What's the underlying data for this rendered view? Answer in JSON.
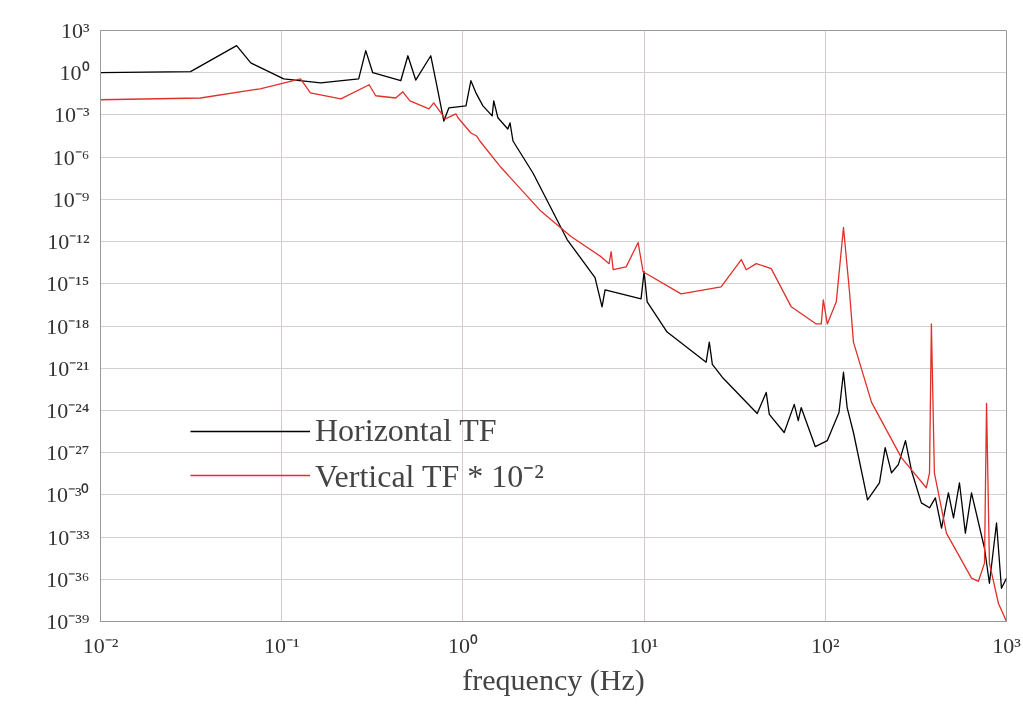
{
  "chart_data": {
    "type": "line",
    "xlabel": "frequency (Hz)",
    "log": "xy",
    "grid": true,
    "legend": "bottom left",
    "line_style": "solid",
    "xlim": [
      0.01,
      1000
    ],
    "xticks": [
      {
        "value": 0.01,
        "label": "10⁻²"
      },
      {
        "value": 0.1,
        "label": "10⁻¹"
      },
      {
        "value": 1,
        "label": "10⁰"
      },
      {
        "value": 10,
        "label": "10¹"
      },
      {
        "value": 100,
        "label": "10²"
      },
      {
        "value": 1000,
        "label": "10³"
      }
    ],
    "ylim": [
      1e-39,
      1000
    ],
    "yticks": [
      {
        "value": 1000,
        "label": "10³"
      },
      {
        "value": 1,
        "label": "10⁰"
      },
      {
        "value": 0.001,
        "label": "10⁻³"
      },
      {
        "value": 1e-06,
        "label": "10⁻⁶"
      },
      {
        "value": 1e-09,
        "label": "10⁻⁹"
      },
      {
        "value": 1e-12,
        "label": "10⁻¹²"
      },
      {
        "value": 1e-15,
        "label": "10⁻¹⁵"
      },
      {
        "value": 1e-18,
        "label": "10⁻¹⁸"
      },
      {
        "value": 1e-21,
        "label": "10⁻²¹"
      },
      {
        "value": 1e-24,
        "label": "10⁻²⁴"
      },
      {
        "value": 1e-27,
        "label": "10⁻²⁷"
      },
      {
        "value": 1e-30,
        "label": "10⁻³⁰"
      },
      {
        "value": 1e-33,
        "label": "10⁻³³"
      },
      {
        "value": 1e-36,
        "label": "10⁻³⁶"
      },
      {
        "value": 1e-39,
        "label": "10⁻³⁹"
      }
    ],
    "series": [
      {
        "name": "Horizontal TF",
        "color": "#000000",
        "x": [
          0.01,
          0.0314,
          0.0564,
          0.0675,
          0.1026,
          0.164,
          0.266,
          0.291,
          0.318,
          0.454,
          0.497,
          0.549,
          0.665,
          0.718,
          0.785,
          0.837,
          1.04,
          1.107,
          1.18,
          1.29,
          1.45,
          1.48,
          1.56,
          1.77,
          1.82,
          1.89,
          2.44,
          3.76,
          5.36,
          5.86,
          6.09,
          7.47,
          9.62,
          10.0,
          10.4,
          13.4,
          22.0,
          22.9,
          23.8,
          27.0,
          42.1,
          47.2,
          49.1,
          59.3,
          67.4,
          70.9,
          73.6,
          88.0,
          102.6,
          119,
          126,
          132,
          143,
          171,
          199,
          214,
          232,
          253,
          277,
          299,
          339,
          376,
          405,
          438,
          478,
          510,
          550,
          593,
          641,
          756,
          805,
          881,
          938,
          1000
        ],
        "values": [
          1,
          1.2,
          85,
          5,
          0.37,
          0.19,
          0.37,
          37,
          1,
          0.27,
          16,
          0.3,
          16,
          0.12,
          0.00037,
          0.0032,
          0.0044,
          0.27,
          0.037,
          0.0044,
          0.00085,
          0.01,
          0.00063,
          0.0001,
          0.00027,
          1.4e-05,
          7.2e-08,
          1.4e-12,
          2.7e-15,
          2.3e-17,
          3.7e-16,
          1.9e-16,
          8.5e-17,
          7.2e-15,
          5.2e-17,
          3.7e-19,
          2.7e-21,
          7.2e-20,
          1.9e-21,
          2.3e-22,
          6.1e-25,
          1.9e-23,
          5.2e-25,
          2.7e-26,
          2.7e-24,
          1.9e-25,
          1.6e-24,
          2.7e-27,
          7.2e-27,
          7.2e-25,
          5.2e-22,
          1.6e-24,
          2.7e-26,
          4.4e-31,
          7.2e-30,
          2.3e-27,
          3.7e-29,
          1.4e-28,
          7.2e-27,
          5.2e-29,
          2.7e-31,
          1.2e-31,
          6.1e-31,
          4.4e-33,
          1.4e-30,
          2.3e-32,
          7.2e-30,
          1.9e-33,
          1.4e-30,
          1.6e-34,
          5.2e-37,
          1e-32,
          2.3e-37,
          1.2e-36
        ]
      },
      {
        "name": "Vertical TF * 10⁻²",
        "color": "#e0302a",
        "x": [
          0.01,
          0.0356,
          0.076,
          0.127,
          0.144,
          0.212,
          0.304,
          0.33,
          0.426,
          0.466,
          0.51,
          0.65,
          0.69,
          0.8,
          0.915,
          0.94,
          1.107,
          1.19,
          1.24,
          1.62,
          2.7,
          3.95,
          5.78,
          6.41,
          6.58,
          6.75,
          7.96,
          9.27,
          9.87,
          16.0,
          26.6,
          34.4,
          36.6,
          41.6,
          47.2,
          50.3,
          64.9,
          89.1,
          95.0,
          97.5,
          102.6,
          115,
          126,
          136,
          143,
          180,
          263,
          361,
          376,
          385,
          400,
          466,
          641,
          700,
          756,
          776,
          805,
          903,
          1000
        ],
        "values": [
          0.012,
          0.016,
          0.072,
          0.37,
          0.037,
          0.014,
          0.14,
          0.023,
          0.016,
          0.044,
          0.01,
          0.0027,
          0.0072,
          0.00052,
          0.0012,
          0.00063,
          5.2e-05,
          3.2e-05,
          1.4e-05,
          1.9e-07,
          1.4e-10,
          2.3e-12,
          8.5e-14,
          2.7e-14,
          1.9e-13,
          1e-14,
          1.6e-14,
          8.5e-13,
          7.2e-15,
          1.9e-16,
          6.1e-16,
          5.2e-14,
          1e-14,
          2.7e-14,
          1.6e-14,
          1.2e-14,
          2.3e-17,
          1.4e-18,
          1.4e-18,
          7.2e-17,
          1.4e-18,
          5.2e-17,
          1e-11,
          2.7e-16,
          7.2e-20,
          3.7e-24,
          4.4e-28,
          3.2e-30,
          3.7e-29,
          1.4e-18,
          3.7e-29,
          1.9e-33,
          1.2e-36,
          7.2e-37,
          1.4e-35,
          3.2e-24,
          1.4e-35,
          1.9e-38,
          1e-39
        ]
      }
    ]
  }
}
